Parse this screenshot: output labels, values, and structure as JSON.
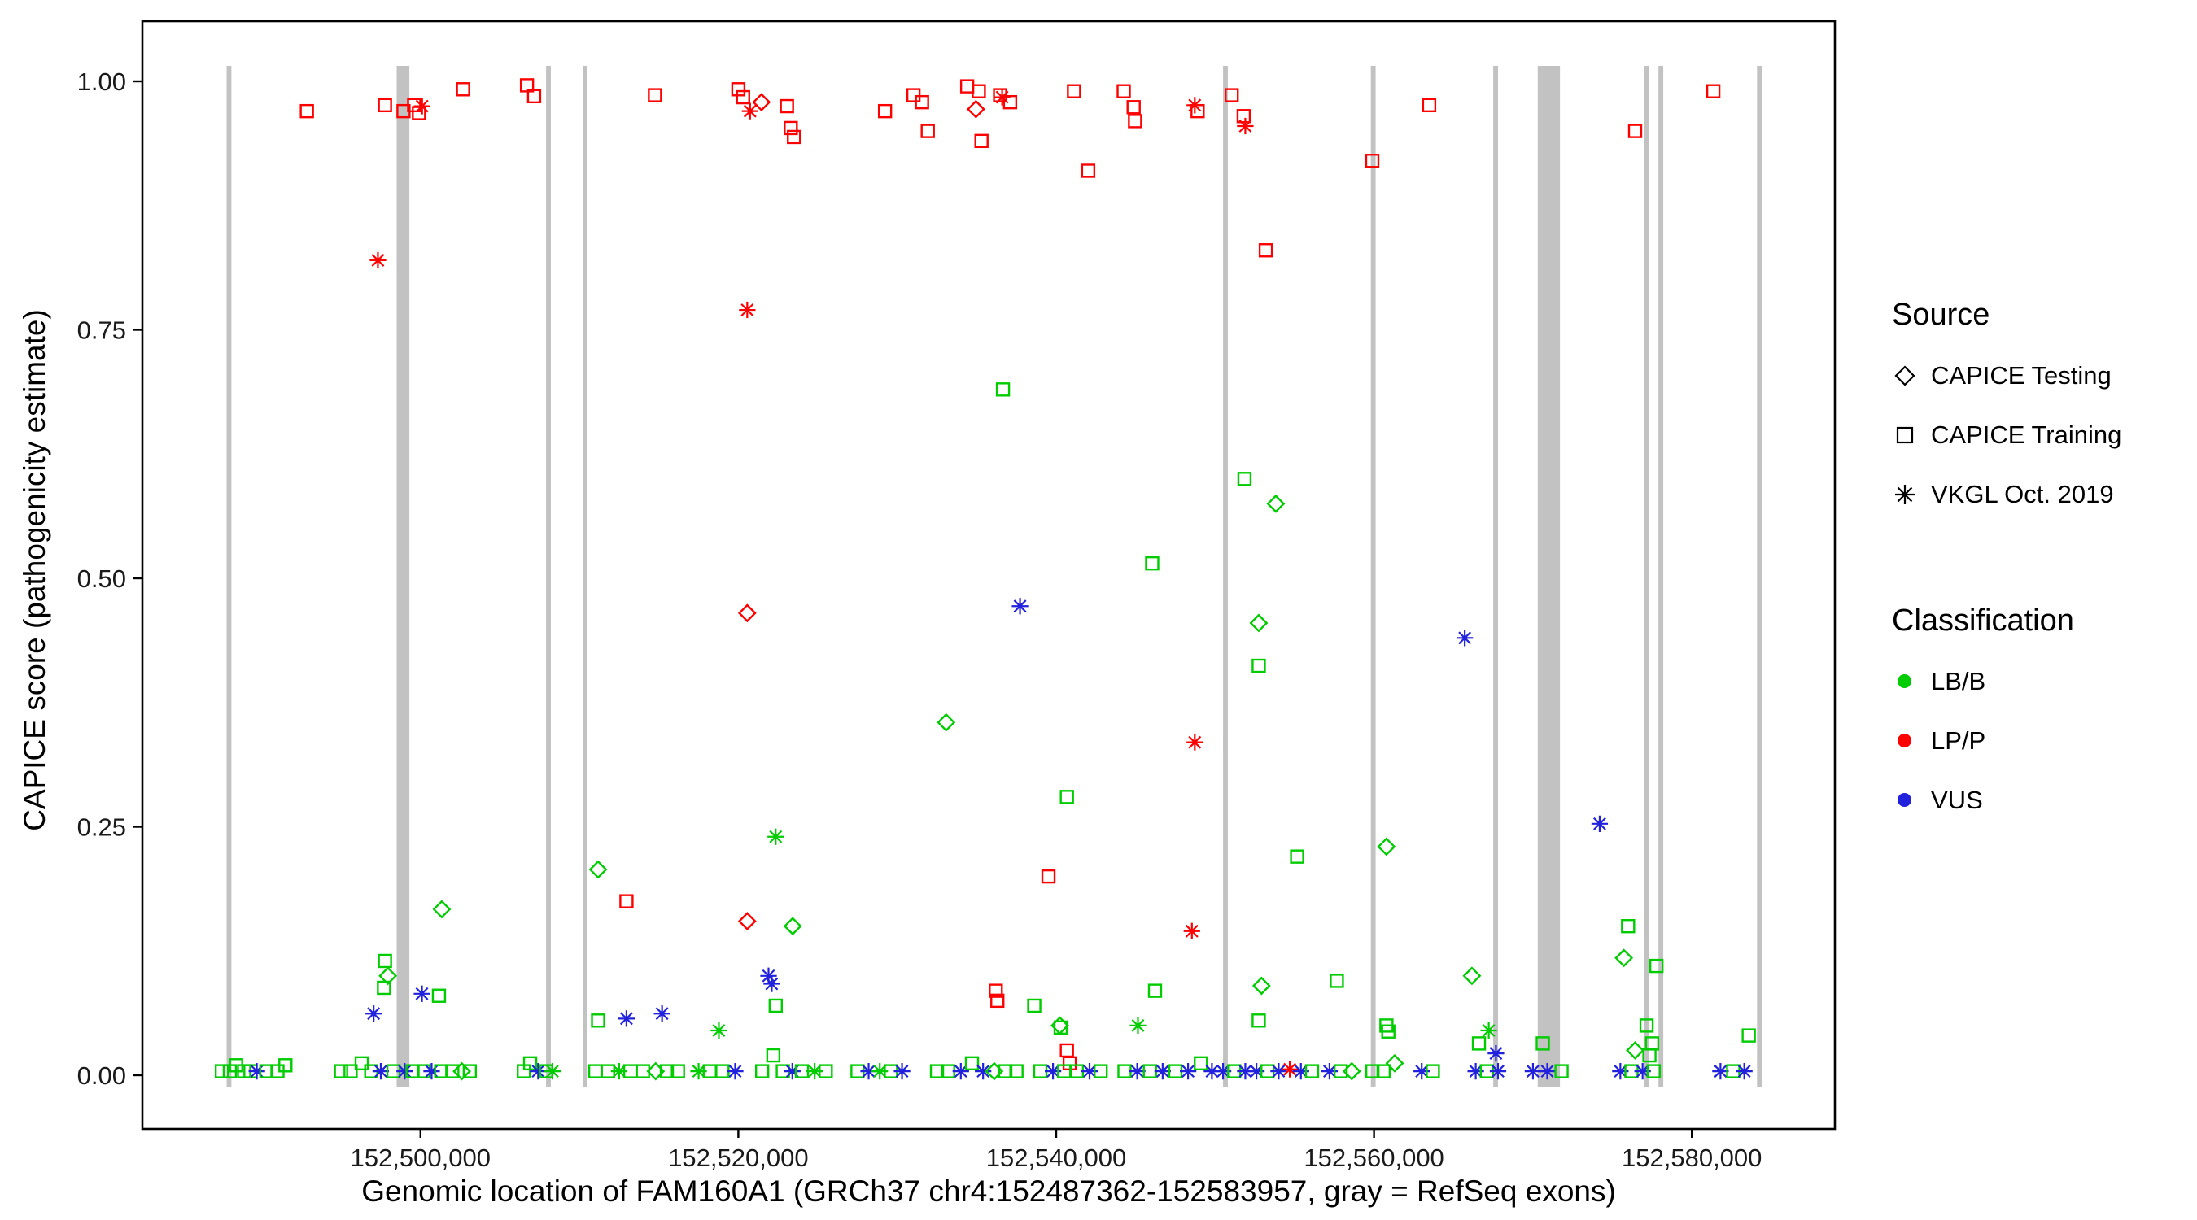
{
  "chart_data": {
    "type": "scatter",
    "title": "",
    "xlabel": "Genomic location of FAM160A1 (GRCh37 chr4:152487362-152583957, gray = RefSeq exons)",
    "ylabel": "CAPICE score (pathogenicity estimate)",
    "xlim": [
      152482500,
      152589000
    ],
    "ylim": [
      0,
      1
    ],
    "grid": "off",
    "legend_position": "right",
    "x_ticks": [
      {
        "value": 152500000,
        "label": "152,500,000"
      },
      {
        "value": 152520000,
        "label": "152,520,000"
      },
      {
        "value": 152540000,
        "label": "152,540,000"
      },
      {
        "value": 152560000,
        "label": "152,560,000"
      },
      {
        "value": 152580000,
        "label": "152,580,000"
      }
    ],
    "y_ticks": [
      {
        "value": 0.0,
        "label": "0.00"
      },
      {
        "value": 0.25,
        "label": "0.25"
      },
      {
        "value": 0.5,
        "label": "0.50"
      },
      {
        "value": 0.75,
        "label": "0.75"
      },
      {
        "value": 1.0,
        "label": "1.00"
      }
    ],
    "exon_color": "#c2c2c2",
    "exons": [
      {
        "start": 152487800,
        "end": 152488100
      },
      {
        "start": 152498500,
        "end": 152499300
      },
      {
        "start": 152507900,
        "end": 152508200
      },
      {
        "start": 152510200,
        "end": 152510500
      },
      {
        "start": 152550500,
        "end": 152550800
      },
      {
        "start": 152559800,
        "end": 152560100
      },
      {
        "start": 152567500,
        "end": 152567800
      },
      {
        "start": 152570300,
        "end": 152571700
      },
      {
        "start": 152577000,
        "end": 152577300
      },
      {
        "start": 152577900,
        "end": 152578200
      },
      {
        "start": 152584100,
        "end": 152584400
      }
    ],
    "legend": {
      "source": {
        "title": "Source",
        "items": [
          {
            "shape": "diamond",
            "label": "CAPICE Testing"
          },
          {
            "shape": "square",
            "label": "CAPICE Training"
          },
          {
            "shape": "asterisk",
            "label": "VKGL Oct. 2019"
          }
        ]
      },
      "classification": {
        "title": "Classification",
        "items": [
          {
            "color": "#00cc00",
            "label": "LB/B"
          },
          {
            "color": "#ff0000",
            "label": "LP/P"
          },
          {
            "color": "#2222dd",
            "label": "VUS"
          }
        ]
      }
    },
    "class_colors": {
      "g": "#00cc00",
      "r": "#ff0000",
      "b": "#2222dd"
    },
    "points": [
      [
        152492850,
        0.97,
        "sq",
        "r"
      ],
      [
        152497765,
        0.976,
        "sq",
        "r"
      ],
      [
        152498930,
        0.97,
        "sq",
        "r"
      ],
      [
        152499600,
        0.976,
        "sq",
        "r"
      ],
      [
        152499900,
        0.968,
        "sq",
        "r"
      ],
      [
        152500100,
        0.975,
        "as",
        "r"
      ],
      [
        152502680,
        0.992,
        "sq",
        "r"
      ],
      [
        152506700,
        0.996,
        "sq",
        "r"
      ],
      [
        152507150,
        0.985,
        "sq",
        "r"
      ],
      [
        152514750,
        0.986,
        "sq",
        "r"
      ],
      [
        152520000,
        0.992,
        "sq",
        "r"
      ],
      [
        152520300,
        0.984,
        "sq",
        "r"
      ],
      [
        152520740,
        0.97,
        "as",
        "r"
      ],
      [
        152521455,
        0.979,
        "di",
        "r"
      ],
      [
        152523060,
        0.975,
        "sq",
        "r"
      ],
      [
        152523300,
        0.953,
        "sq",
        "r"
      ],
      [
        152523500,
        0.944,
        "sq",
        "r"
      ],
      [
        152529230,
        0.97,
        "sq",
        "r"
      ],
      [
        152531020,
        0.986,
        "sq",
        "r"
      ],
      [
        152531560,
        0.979,
        "sq",
        "r"
      ],
      [
        152531920,
        0.95,
        "sq",
        "r"
      ],
      [
        152534400,
        0.995,
        "sq",
        "r"
      ],
      [
        152535130,
        0.99,
        "sq",
        "r"
      ],
      [
        152534950,
        0.972,
        "di",
        "r"
      ],
      [
        152535300,
        0.94,
        "sq",
        "r"
      ],
      [
        152536470,
        0.986,
        "sq",
        "r"
      ],
      [
        152536600,
        0.984,
        "as",
        "r"
      ],
      [
        152537100,
        0.979,
        "sq",
        "r"
      ],
      [
        152541120,
        0.99,
        "sq",
        "r"
      ],
      [
        152542015,
        0.91,
        "sq",
        "r"
      ],
      [
        152544250,
        0.99,
        "sq",
        "r"
      ],
      [
        152544875,
        0.974,
        "sq",
        "r"
      ],
      [
        152544960,
        0.96,
        "sq",
        "r"
      ],
      [
        152548720,
        0.976,
        "as",
        "r"
      ],
      [
        152548900,
        0.97,
        "sq",
        "r"
      ],
      [
        152551045,
        0.986,
        "sq",
        "r"
      ],
      [
        152551800,
        0.965,
        "sq",
        "r"
      ],
      [
        152551900,
        0.955,
        "as",
        "r"
      ],
      [
        152553190,
        0.83,
        "sq",
        "r"
      ],
      [
        152559890,
        0.92,
        "sq",
        "r"
      ],
      [
        152563470,
        0.976,
        "sq",
        "r"
      ],
      [
        152576430,
        0.95,
        "sq",
        "r"
      ],
      [
        152581350,
        0.99,
        "sq",
        "r"
      ],
      [
        152497320,
        0.82,
        "as",
        "r"
      ],
      [
        152520560,
        0.77,
        "as",
        "r"
      ],
      [
        152536650,
        0.69,
        "sq",
        "g"
      ],
      [
        152551850,
        0.6,
        "sq",
        "g"
      ],
      [
        152553820,
        0.575,
        "di",
        "g"
      ],
      [
        152546040,
        0.515,
        "sq",
        "g"
      ],
      [
        152520560,
        0.465,
        "di",
        "r"
      ],
      [
        152552745,
        0.455,
        "di",
        "g"
      ],
      [
        152537725,
        0.472,
        "as",
        "b"
      ],
      [
        152565710,
        0.44,
        "as",
        "b"
      ],
      [
        152552745,
        0.412,
        "sq",
        "g"
      ],
      [
        152548720,
        0.335,
        "as",
        "r"
      ],
      [
        152533075,
        0.355,
        "di",
        "g"
      ],
      [
        152540675,
        0.28,
        "sq",
        "g"
      ],
      [
        152522350,
        0.24,
        "as",
        "g"
      ],
      [
        152574200,
        0.253,
        "as",
        "b"
      ],
      [
        152560780,
        0.23,
        "di",
        "g"
      ],
      [
        152555160,
        0.22,
        "sq",
        "g"
      ],
      [
        152539515,
        0.2,
        "sq",
        "r"
      ],
      [
        152511175,
        0.207,
        "di",
        "g"
      ],
      [
        152512960,
        0.175,
        "sq",
        "r"
      ],
      [
        152548540,
        0.145,
        "as",
        "r"
      ],
      [
        152520560,
        0.155,
        "di",
        "r"
      ],
      [
        152523420,
        0.15,
        "di",
        "g"
      ],
      [
        152501340,
        0.167,
        "di",
        "g"
      ],
      [
        152566160,
        0.1,
        "di",
        "g"
      ],
      [
        152557660,
        0.095,
        "sq",
        "g"
      ],
      [
        152552920,
        0.09,
        "di",
        "g"
      ],
      [
        152575985,
        0.15,
        "sq",
        "g"
      ],
      [
        152575720,
        0.118,
        "di",
        "g"
      ],
      [
        152577770,
        0.11,
        "sq",
        "g"
      ],
      [
        152497765,
        0.115,
        "sq",
        "g"
      ],
      [
        152497945,
        0.1,
        "di",
        "g"
      ],
      [
        152497700,
        0.088,
        "sq",
        "g"
      ],
      [
        152497050,
        0.062,
        "as",
        "b"
      ],
      [
        152500090,
        0.082,
        "as",
        "b"
      ],
      [
        152501160,
        0.08,
        "sq",
        "g"
      ],
      [
        152521900,
        0.1,
        "as",
        "b"
      ],
      [
        152522100,
        0.092,
        "as",
        "b"
      ],
      [
        152522350,
        0.07,
        "sq",
        "g"
      ],
      [
        152511175,
        0.055,
        "sq",
        "g"
      ],
      [
        152512960,
        0.057,
        "as",
        "b"
      ],
      [
        152515200,
        0.062,
        "as",
        "b"
      ],
      [
        152518775,
        0.045,
        "as",
        "g"
      ],
      [
        152536200,
        0.085,
        "sq",
        "r"
      ],
      [
        152536300,
        0.075,
        "sq",
        "r"
      ],
      [
        152538620,
        0.07,
        "sq",
        "g"
      ],
      [
        152540230,
        0.05,
        "di",
        "g"
      ],
      [
        152540280,
        0.048,
        "sq",
        "g"
      ],
      [
        152545145,
        0.05,
        "as",
        "g"
      ],
      [
        152546220,
        0.085,
        "sq",
        "g"
      ],
      [
        152552745,
        0.055,
        "sq",
        "g"
      ],
      [
        152560780,
        0.05,
        "sq",
        "g"
      ],
      [
        152560900,
        0.044,
        "sq",
        "g"
      ],
      [
        152567220,
        0.045,
        "as",
        "g"
      ],
      [
        152566600,
        0.032,
        "sq",
        "g"
      ],
      [
        152567670,
        0.022,
        "as",
        "b"
      ],
      [
        152570620,
        0.032,
        "sq",
        "g"
      ],
      [
        152577150,
        0.05,
        "sq",
        "g"
      ],
      [
        152577500,
        0.032,
        "sq",
        "g"
      ],
      [
        152577330,
        0.02,
        "sq",
        "g"
      ],
      [
        152576430,
        0.025,
        "di",
        "g"
      ],
      [
        152583580,
        0.04,
        "sq",
        "g"
      ],
      [
        152540675,
        0.025,
        "sq",
        "r"
      ],
      [
        152540850,
        0.012,
        "sq",
        "r"
      ],
      [
        152487500,
        0.004,
        "sq",
        "g"
      ],
      [
        152488000,
        0.004,
        "sq",
        "g"
      ],
      [
        152488400,
        0.01,
        "sq",
        "g"
      ],
      [
        152488900,
        0.004,
        "sq",
        "g"
      ],
      [
        152489300,
        0.004,
        "sq",
        "g"
      ],
      [
        152489700,
        0.004,
        "as",
        "b"
      ],
      [
        152490300,
        0.004,
        "sq",
        "g"
      ],
      [
        152491000,
        0.004,
        "sq",
        "g"
      ],
      [
        152491500,
        0.01,
        "sq",
        "g"
      ],
      [
        152495000,
        0.004,
        "sq",
        "g"
      ],
      [
        152495600,
        0.004,
        "sq",
        "g"
      ],
      [
        152496300,
        0.012,
        "sq",
        "g"
      ],
      [
        152496900,
        0.004,
        "sq",
        "g"
      ],
      [
        152497500,
        0.004,
        "as",
        "b"
      ],
      [
        152498300,
        0.004,
        "sq",
        "g"
      ],
      [
        152499000,
        0.004,
        "as",
        "b"
      ],
      [
        152499500,
        0.004,
        "sq",
        "g"
      ],
      [
        152500200,
        0.004,
        "sq",
        "g"
      ],
      [
        152500700,
        0.004,
        "as",
        "b"
      ],
      [
        152501300,
        0.004,
        "sq",
        "g"
      ],
      [
        152502000,
        0.004,
        "sq",
        "g"
      ],
      [
        152502600,
        0.004,
        "di",
        "g"
      ],
      [
        152503100,
        0.004,
        "sq",
        "g"
      ],
      [
        152506500,
        0.004,
        "sq",
        "g"
      ],
      [
        152506900,
        0.012,
        "sq",
        "g"
      ],
      [
        152507400,
        0.004,
        "as",
        "b"
      ],
      [
        152507900,
        0.004,
        "sq",
        "g"
      ],
      [
        152508300,
        0.004,
        "as",
        "g"
      ],
      [
        152511000,
        0.004,
        "sq",
        "g"
      ],
      [
        152511800,
        0.004,
        "sq",
        "g"
      ],
      [
        152512500,
        0.004,
        "as",
        "g"
      ],
      [
        152513200,
        0.004,
        "sq",
        "g"
      ],
      [
        152514000,
        0.004,
        "sq",
        "g"
      ],
      [
        152514800,
        0.004,
        "di",
        "g"
      ],
      [
        152515500,
        0.004,
        "sq",
        "g"
      ],
      [
        152516200,
        0.004,
        "sq",
        "g"
      ],
      [
        152517500,
        0.004,
        "as",
        "g"
      ],
      [
        152518200,
        0.004,
        "sq",
        "g"
      ],
      [
        152519000,
        0.004,
        "sq",
        "g"
      ],
      [
        152519800,
        0.004,
        "as",
        "b"
      ],
      [
        152521500,
        0.004,
        "sq",
        "g"
      ],
      [
        152522200,
        0.02,
        "sq",
        "g"
      ],
      [
        152522800,
        0.004,
        "sq",
        "g"
      ],
      [
        152523400,
        0.004,
        "as",
        "b"
      ],
      [
        152524000,
        0.004,
        "sq",
        "g"
      ],
      [
        152524800,
        0.004,
        "as",
        "g"
      ],
      [
        152525500,
        0.004,
        "sq",
        "g"
      ],
      [
        152527500,
        0.004,
        "sq",
        "g"
      ],
      [
        152528200,
        0.004,
        "as",
        "b"
      ],
      [
        152528900,
        0.004,
        "as",
        "g"
      ],
      [
        152529600,
        0.004,
        "sq",
        "g"
      ],
      [
        152530300,
        0.004,
        "as",
        "b"
      ],
      [
        152532500,
        0.004,
        "sq",
        "g"
      ],
      [
        152533200,
        0.004,
        "sq",
        "g"
      ],
      [
        152534000,
        0.004,
        "as",
        "b"
      ],
      [
        152534700,
        0.012,
        "sq",
        "g"
      ],
      [
        152535400,
        0.004,
        "as",
        "b"
      ],
      [
        152536100,
        0.004,
        "di",
        "g"
      ],
      [
        152536800,
        0.004,
        "sq",
        "g"
      ],
      [
        152537500,
        0.004,
        "sq",
        "g"
      ],
      [
        152539000,
        0.004,
        "sq",
        "g"
      ],
      [
        152539800,
        0.004,
        "as",
        "b"
      ],
      [
        152540500,
        0.004,
        "sq",
        "g"
      ],
      [
        152541300,
        0.004,
        "sq",
        "g"
      ],
      [
        152542100,
        0.004,
        "as",
        "b"
      ],
      [
        152542800,
        0.004,
        "sq",
        "g"
      ],
      [
        152544300,
        0.004,
        "sq",
        "g"
      ],
      [
        152545100,
        0.004,
        "as",
        "b"
      ],
      [
        152545900,
        0.004,
        "sq",
        "g"
      ],
      [
        152546700,
        0.004,
        "as",
        "b"
      ],
      [
        152547500,
        0.004,
        "sq",
        "g"
      ],
      [
        152548300,
        0.004,
        "as",
        "b"
      ],
      [
        152549100,
        0.012,
        "sq",
        "g"
      ],
      [
        152549800,
        0.004,
        "as",
        "b"
      ],
      [
        152550500,
        0.004,
        "as",
        "b"
      ],
      [
        152551200,
        0.004,
        "sq",
        "g"
      ],
      [
        152551900,
        0.004,
        "as",
        "b"
      ],
      [
        152552600,
        0.004,
        "as",
        "b"
      ],
      [
        152553300,
        0.004,
        "sq",
        "g"
      ],
      [
        152554000,
        0.004,
        "as",
        "b"
      ],
      [
        152554700,
        0.006,
        "as",
        "r"
      ],
      [
        152555400,
        0.004,
        "as",
        "b"
      ],
      [
        152556100,
        0.004,
        "sq",
        "g"
      ],
      [
        152557200,
        0.004,
        "as",
        "b"
      ],
      [
        152557900,
        0.004,
        "sq",
        "g"
      ],
      [
        152558600,
        0.004,
        "di",
        "g"
      ],
      [
        152559900,
        0.004,
        "sq",
        "g"
      ],
      [
        152560600,
        0.004,
        "sq",
        "g"
      ],
      [
        152561300,
        0.012,
        "di",
        "g"
      ],
      [
        152563000,
        0.004,
        "as",
        "b"
      ],
      [
        152563700,
        0.004,
        "sq",
        "g"
      ],
      [
        152566400,
        0.004,
        "as",
        "b"
      ],
      [
        152567100,
        0.004,
        "sq",
        "g"
      ],
      [
        152567800,
        0.004,
        "as",
        "b"
      ],
      [
        152570000,
        0.004,
        "as",
        "b"
      ],
      [
        152570900,
        0.004,
        "as",
        "b"
      ],
      [
        152571800,
        0.004,
        "sq",
        "g"
      ],
      [
        152575500,
        0.004,
        "as",
        "b"
      ],
      [
        152576200,
        0.004,
        "sq",
        "g"
      ],
      [
        152576900,
        0.004,
        "as",
        "b"
      ],
      [
        152577600,
        0.004,
        "sq",
        "g"
      ],
      [
        152581800,
        0.004,
        "as",
        "b"
      ],
      [
        152582600,
        0.004,
        "sq",
        "g"
      ],
      [
        152583300,
        0.004,
        "as",
        "b"
      ]
    ]
  }
}
